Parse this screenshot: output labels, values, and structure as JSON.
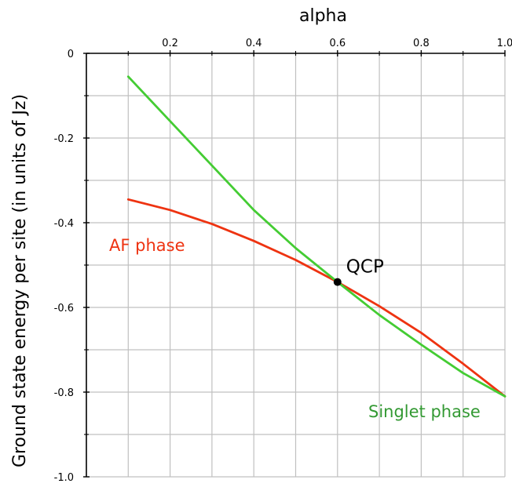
{
  "chart_data": {
    "type": "line",
    "title": "",
    "xlabel": "alpha",
    "ylabel": "Ground state energy per site (in units of Jz)",
    "xlim": [
      0.0,
      1.0
    ],
    "ylim": [
      -1.0,
      0.0
    ],
    "x_axis_position": "top",
    "grid": true,
    "x_ticks": [
      0.2,
      0.4,
      0.6,
      0.8,
      1.0
    ],
    "x_tick_labels": [
      "0.2",
      "0.4",
      "0.6",
      "0.8",
      "1.0"
    ],
    "y_ticks": [
      0.0,
      -0.2,
      -0.4,
      -0.6,
      -0.8,
      -1.0
    ],
    "y_tick_labels": [
      "0",
      "-0.2",
      "-0.4",
      "-0.6",
      "-0.8",
      "-1.0"
    ],
    "series": [
      {
        "key": "af",
        "color": "#ee3311",
        "x": [
          0.1,
          0.2,
          0.3,
          0.4,
          0.5,
          0.6,
          0.7,
          0.8,
          0.9,
          1.0
        ],
        "y": [
          -0.345,
          -0.37,
          -0.403,
          -0.443,
          -0.488,
          -0.54,
          -0.597,
          -0.66,
          -0.733,
          -0.81
        ]
      },
      {
        "key": "singlet",
        "color": "#44cc33",
        "x": [
          0.1,
          0.2,
          0.3,
          0.4,
          0.5,
          0.6,
          0.7,
          0.8,
          0.9,
          1.0
        ],
        "y": [
          -0.055,
          -0.16,
          -0.265,
          -0.37,
          -0.46,
          -0.54,
          -0.618,
          -0.688,
          -0.755,
          -0.81
        ]
      }
    ],
    "annotations": [
      {
        "key": "af_label",
        "text": "AF phase",
        "color": "#ee3311"
      },
      {
        "key": "singlet_label",
        "text": "Singlet phase",
        "color": "#339933"
      },
      {
        "key": "qcp_label",
        "text": "QCP",
        "color": "#000000",
        "x": 0.6,
        "y": -0.54
      }
    ]
  }
}
